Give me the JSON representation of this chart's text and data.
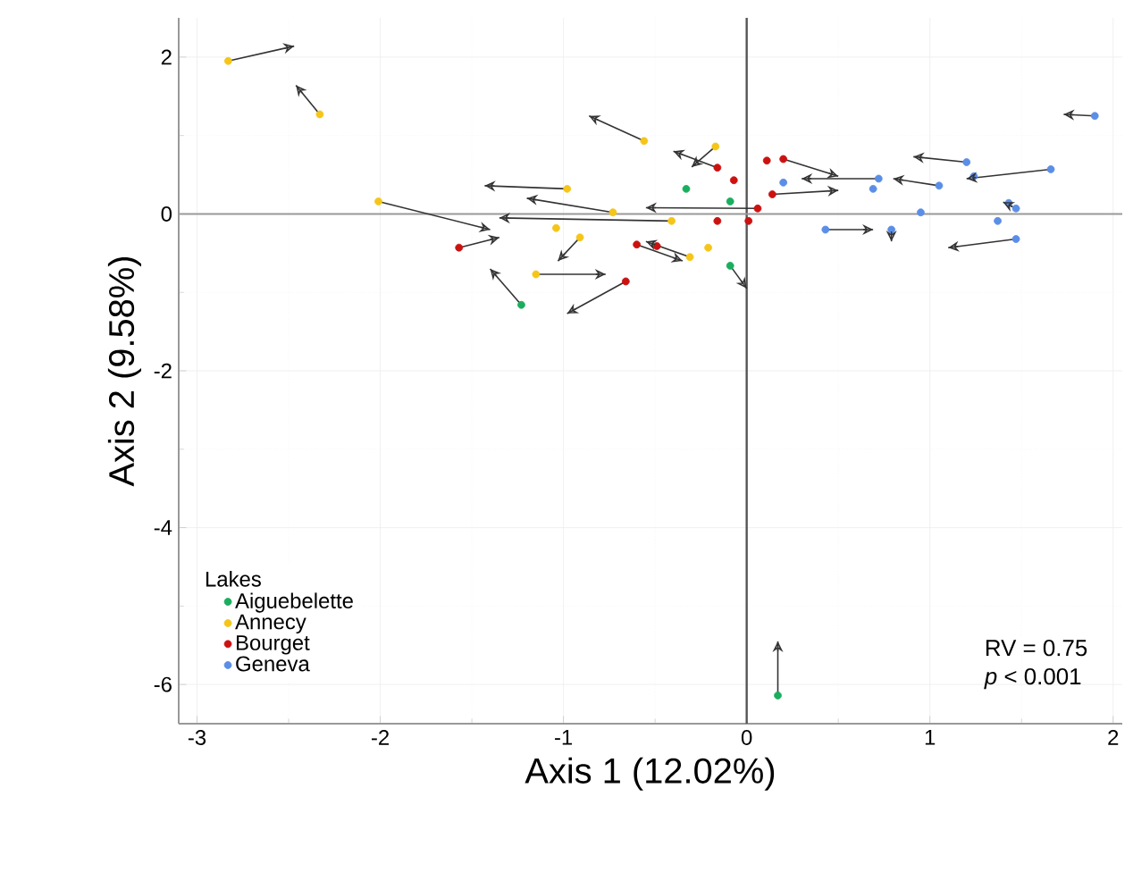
{
  "chart_data": {
    "type": "scatter",
    "xlabel": "Axis 1 (12.02%)",
    "ylabel": "Axis 2 (9.58%)",
    "legend_title": "Lakes",
    "xlim": [
      -3.1,
      2.05
    ],
    "ylim": [
      -6.5,
      2.5
    ],
    "xticks": [
      -3,
      -2,
      -1,
      0,
      1,
      2
    ],
    "yticks": [
      -6,
      -4,
      -2,
      0,
      2
    ],
    "grid": true,
    "legend": "bottom left",
    "ref_lines": [
      {
        "axis": "x",
        "value": 0,
        "color": "#555555"
      },
      {
        "axis": "y",
        "value": 0,
        "color": "#999999"
      }
    ],
    "annotations": [
      "RV = 0.75",
      "*p* < 0.001"
    ],
    "series": [
      {
        "name": "Aiguebelette",
        "color": "#1aae5e",
        "marker": "circle",
        "x": [
          -1.23,
          -0.33,
          -0.09,
          -0.09,
          0.17
        ],
        "values": [
          -1.16,
          0.32,
          0.16,
          -0.66,
          -6.14
        ]
      },
      {
        "name": "Annecy",
        "color": "#f5c518",
        "marker": "circle",
        "x": [
          -2.83,
          -2.33,
          -2.01,
          -0.98,
          -0.73,
          -0.56,
          -1.15,
          -0.91,
          -1.04,
          -0.41,
          -0.17,
          -0.31,
          -0.21
        ],
        "values": [
          1.95,
          1.27,
          0.16,
          0.32,
          0.02,
          0.93,
          -0.77,
          -0.3,
          -0.18,
          -0.09,
          0.86,
          -0.55,
          -0.43
        ]
      },
      {
        "name": "Bourget",
        "color": "#cc1111",
        "marker": "circle",
        "x": [
          -1.57,
          -0.66,
          -0.6,
          -0.49,
          -0.16,
          -0.07,
          0.06,
          0.01,
          -0.16,
          0.11,
          0.2,
          0.14
        ],
        "values": [
          -0.43,
          -0.86,
          -0.39,
          -0.41,
          0.59,
          0.43,
          0.07,
          -0.09,
          -0.09,
          0.68,
          0.7,
          0.25
        ]
      },
      {
        "name": "Geneva",
        "color": "#5b8ee6",
        "marker": "circle",
        "x": [
          1.9,
          1.66,
          1.2,
          0.72,
          0.69,
          0.95,
          0.43,
          0.79,
          1.47,
          1.37,
          1.47,
          0.2,
          1.24,
          1.05,
          1.43
        ],
        "values": [
          1.25,
          0.57,
          0.66,
          0.45,
          0.32,
          0.02,
          -0.2,
          -0.2,
          0.07,
          -0.09,
          -0.32,
          0.4,
          0.48,
          0.36,
          0.14
        ]
      },
      {
        "type": "line",
        "color": "#333333",
        "marker": "none",
        "x": [
          -2.83,
          -2.47,
          null,
          -2.33,
          -2.46,
          null,
          -2.01,
          -1.4,
          null,
          -0.98,
          -1.43,
          null,
          -0.73,
          -1.2,
          null,
          -0.56,
          -0.86,
          null,
          -1.15,
          -0.77,
          null,
          -0.91,
          -1.03,
          null,
          -0.41,
          -1.35,
          null,
          -0.17,
          -0.3,
          null,
          -0.31,
          -0.55,
          null,
          -1.57,
          -1.35,
          null,
          -0.66,
          -0.98,
          null,
          -0.6,
          -0.35,
          null,
          -0.16,
          -0.4,
          null,
          0.06,
          -0.55,
          null,
          0.2,
          0.5,
          null,
          -1.23,
          -1.4,
          null,
          0.17,
          0.17,
          null,
          -0.09,
          0.0,
          null,
          1.9,
          1.73,
          null,
          1.66,
          1.2,
          null,
          1.2,
          0.91,
          null,
          0.72,
          0.3,
          null,
          0.43,
          0.69,
          null,
          1.47,
          1.4,
          null,
          1.47,
          1.1,
          null,
          1.05,
          0.8,
          null,
          0.14,
          0.5,
          null,
          0.79,
          0.79
        ],
        "values": [
          1.95,
          2.14,
          null,
          1.27,
          1.64,
          null,
          0.16,
          -0.2,
          null,
          0.32,
          0.36,
          null,
          0.02,
          0.2,
          null,
          0.93,
          1.25,
          null,
          -0.77,
          -0.77,
          null,
          -0.3,
          -0.6,
          null,
          -0.09,
          -0.05,
          null,
          0.86,
          0.6,
          null,
          -0.55,
          -0.35,
          null,
          -0.43,
          -0.3,
          null,
          -0.86,
          -1.27,
          null,
          -0.39,
          -0.6,
          null,
          0.59,
          0.8,
          null,
          0.07,
          0.08,
          null,
          0.7,
          0.48,
          null,
          -1.16,
          -0.7,
          null,
          -6.14,
          -5.45,
          null,
          -0.66,
          -0.95,
          null,
          1.25,
          1.27,
          null,
          0.57,
          0.45,
          null,
          0.66,
          0.73,
          null,
          0.45,
          0.45,
          null,
          -0.2,
          -0.2,
          null,
          0.07,
          0.15,
          null,
          -0.32,
          -0.43,
          null,
          0.36,
          0.45,
          null,
          0.25,
          0.3,
          null,
          -0.2,
          -0.35
        ]
      }
    ]
  }
}
